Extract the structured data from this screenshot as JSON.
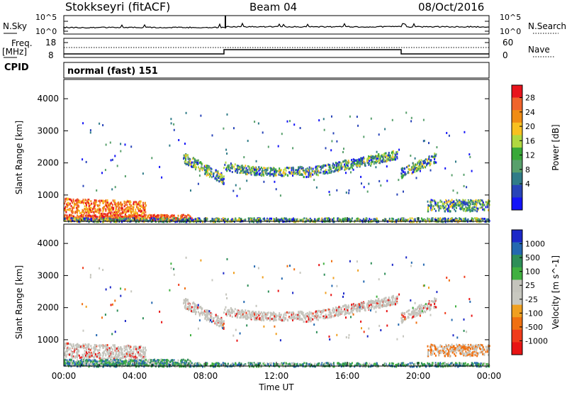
{
  "header": {
    "site": "Stokkseyri (fitACF)",
    "beam": "Beam 04",
    "date": "08/Oct/2016"
  },
  "top_panels": {
    "nsky_label": "N.Sky",
    "nsky_ticks": [
      "10^5",
      "10^0"
    ],
    "nsearch_label": "N.Search",
    "nsearch_ticks": [
      "10^5",
      "10^0"
    ],
    "freq_label": "Freq.",
    "freq_units": "[MHz]",
    "freq_ticks": [
      "18",
      "8"
    ],
    "nave_label": "Nave",
    "nave_ticks": [
      "60",
      "0"
    ],
    "cpid_label": "CPID",
    "cpid_value": "normal (fast) 151"
  },
  "chart_data": [
    {
      "type": "heatmap",
      "name": "power",
      "xlabel": "Time UT",
      "ylabel": "Slant Range [km]",
      "xlim": [
        0,
        24
      ],
      "ylim": [
        180,
        4600
      ],
      "x_ticks": [
        "00:00",
        "04:00",
        "08:00",
        "12:00",
        "16:00",
        "20:00",
        "00:00"
      ],
      "y_ticks": [
        1000,
        2000,
        3000,
        4000
      ],
      "colorbar_label": "Power [dB]",
      "colorbar_ticks": [
        28,
        24,
        20,
        16,
        12,
        8,
        4
      ],
      "colorbar_colors": [
        "#e8141c",
        "#f0642c",
        "#f08c14",
        "#f8c020",
        "#b0d840",
        "#38a838",
        "#58a06c",
        "#307c88",
        "#2844b8",
        "#1414f8"
      ],
      "echo_regions": [
        {
          "t0": 0.0,
          "t1": 4.5,
          "r0": 400,
          "r1": 1100,
          "level": "high"
        },
        {
          "t0": 4.5,
          "t1": 7.0,
          "r0": 220,
          "r1": 500,
          "level": "high"
        },
        {
          "t0": 6.7,
          "t1": 9.0,
          "r0": 1400,
          "r1": 2300,
          "level": "medium"
        },
        {
          "t0": 9.0,
          "t1": 18.8,
          "r0": 1500,
          "r1": 2400,
          "level": "medium"
        },
        {
          "t0": 19.0,
          "t1": 21.0,
          "r0": 1500,
          "r1": 2200,
          "level": "medium"
        },
        {
          "t0": 21.0,
          "t1": 24.0,
          "r0": 500,
          "r1": 900,
          "level": "medium"
        }
      ]
    },
    {
      "type": "heatmap",
      "name": "velocity",
      "xlabel": "Time UT",
      "ylabel": "Slant Range [km]",
      "xlim": [
        0,
        24
      ],
      "ylim": [
        180,
        4600
      ],
      "x_ticks": [
        "00:00",
        "04:00",
        "08:00",
        "12:00",
        "16:00",
        "20:00",
        "00:00"
      ],
      "y_ticks": [
        1000,
        2000,
        3000,
        4000
      ],
      "colorbar_label": "Velocity [m s^-1]",
      "colorbar_ticks": [
        "1000",
        "500",
        "100",
        "25",
        "-25",
        "-100",
        "-500",
        "-1000"
      ],
      "colorbar_colors": [
        "#1c28c8",
        "#2468b0",
        "#2e8e58",
        "#40b040",
        "#c4c4bc",
        "#c8c8c0",
        "#f0a020",
        "#f07010",
        "#f03c1c",
        "#e81414"
      ]
    }
  ]
}
